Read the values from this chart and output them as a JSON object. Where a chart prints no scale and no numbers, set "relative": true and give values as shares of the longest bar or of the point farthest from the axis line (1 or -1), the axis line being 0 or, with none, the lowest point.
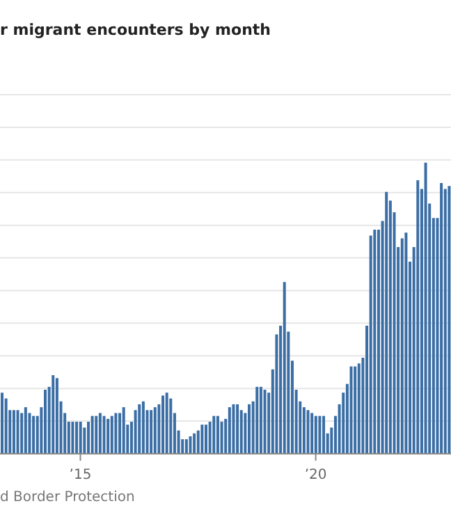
{
  "chart_data": {
    "type": "bar",
    "title": "r migrant encounters by month",
    "annotations": [
      "d Border Protection"
    ],
    "relative": true,
    "grid": "y",
    "color": "#3b6ea5",
    "categories": [
      null,
      null,
      null,
      null,
      null,
      null,
      null,
      null,
      null,
      null,
      null,
      null,
      null,
      null,
      null,
      null,
      null,
      null,
      null,
      null,
      "’15",
      null,
      null,
      null,
      null,
      null,
      null,
      null,
      null,
      null,
      null,
      null,
      null,
      null,
      null,
      null,
      null,
      null,
      null,
      null,
      null,
      null,
      null,
      null,
      null,
      null,
      null,
      null,
      null,
      null,
      null,
      null,
      null,
      null,
      null,
      null,
      null,
      null,
      null,
      null,
      null,
      null,
      null,
      null,
      null,
      null,
      null,
      null,
      null,
      null,
      null,
      null,
      null,
      null,
      null,
      null,
      null,
      null,
      null,
      null,
      "’20",
      null,
      null,
      null,
      null,
      null,
      null,
      null,
      null,
      null,
      null,
      null,
      null,
      null,
      null,
      null,
      null,
      null,
      null,
      null,
      null,
      null,
      null,
      null,
      null,
      null,
      null,
      null,
      null,
      null,
      null,
      null,
      null,
      null,
      null
    ],
    "values": [
      0.21,
      0.19,
      0.15,
      0.15,
      0.15,
      0.14,
      0.16,
      0.14,
      0.13,
      0.13,
      0.16,
      0.22,
      0.23,
      0.27,
      0.26,
      0.18,
      0.14,
      0.11,
      0.11,
      0.11,
      0.11,
      0.09,
      0.11,
      0.13,
      0.13,
      0.14,
      0.13,
      0.12,
      0.13,
      0.14,
      0.14,
      0.16,
      0.1,
      0.11,
      0.15,
      0.17,
      0.18,
      0.15,
      0.15,
      0.16,
      0.17,
      0.2,
      0.21,
      0.19,
      0.14,
      0.08,
      0.05,
      0.05,
      0.06,
      0.07,
      0.08,
      0.1,
      0.1,
      0.11,
      0.13,
      0.13,
      0.11,
      0.12,
      0.16,
      0.17,
      0.17,
      0.15,
      0.14,
      0.17,
      0.18,
      0.23,
      0.23,
      0.22,
      0.21,
      0.29,
      0.41,
      0.44,
      0.59,
      0.42,
      0.32,
      0.22,
      0.18,
      0.16,
      0.15,
      0.14,
      0.13,
      0.13,
      0.13,
      0.07,
      0.09,
      0.13,
      0.17,
      0.21,
      0.24,
      0.3,
      0.3,
      0.31,
      0.33,
      0.44,
      0.75,
      0.77,
      0.77,
      0.8,
      0.9,
      0.87,
      0.83,
      0.71,
      0.74,
      0.76,
      0.66,
      0.71,
      0.94,
      0.91,
      1,
      0.86,
      0.81,
      0.81,
      0.93,
      0.91,
      0.92
    ]
  }
}
